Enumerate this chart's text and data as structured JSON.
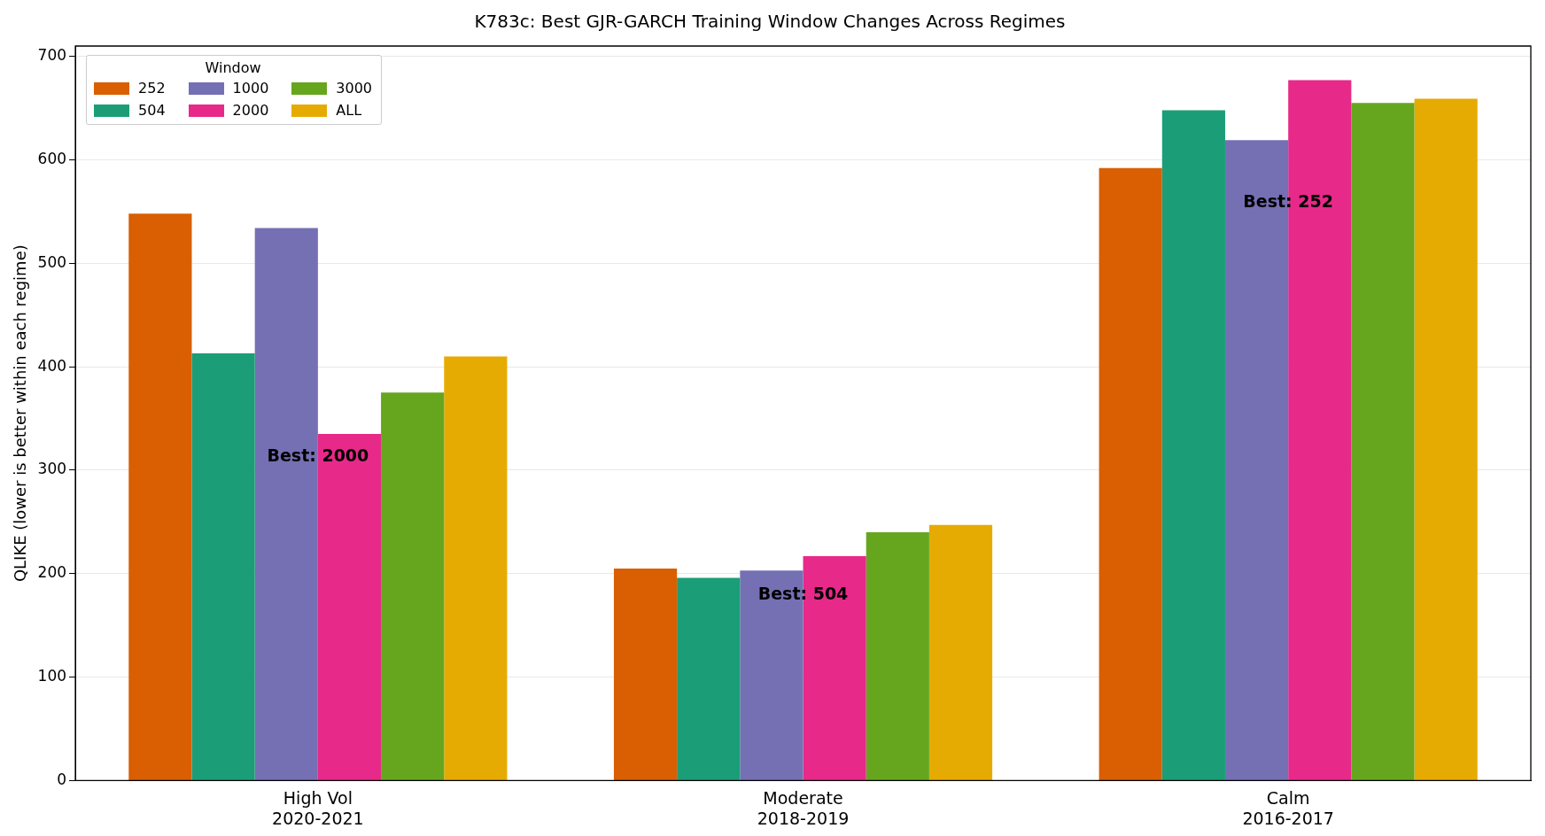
{
  "chart_data": {
    "type": "bar",
    "title": "K783c: Best GJR-GARCH Training Window Changes Across Regimes",
    "ylabel": "QLIKE (lower is better within each regime)",
    "legend_title": "Window",
    "categories": [
      "High Vol\n2020-2021",
      "Moderate\n2018-2019",
      "Calm\n2016-2017"
    ],
    "series": [
      {
        "name": "252",
        "color": "#d95f02",
        "values": [
          548,
          205,
          592
        ]
      },
      {
        "name": "504",
        "color": "#1b9e77",
        "values": [
          413,
          196,
          648
        ]
      },
      {
        "name": "1000",
        "color": "#7570b3",
        "values": [
          534,
          203,
          619
        ]
      },
      {
        "name": "2000",
        "color": "#e7298a",
        "values": [
          335,
          217,
          677
        ]
      },
      {
        "name": "3000",
        "color": "#66a61e",
        "values": [
          375,
          240,
          655
        ]
      },
      {
        "name": "ALL",
        "color": "#e6ab02",
        "values": [
          410,
          247,
          659
        ]
      }
    ],
    "annotations": [
      {
        "text": "Best: 2000",
        "x": "High Vol\n2020-2021",
        "y": 313
      },
      {
        "text": "Best: 504",
        "x": "Moderate\n2018-2019",
        "y": 179
      },
      {
        "text": "Best: 252",
        "x": "Calm\n2016-2017",
        "y": 558
      }
    ],
    "ylim": [
      0,
      710
    ],
    "yticks": [
      0,
      100,
      200,
      300,
      400,
      500,
      600,
      700
    ],
    "grid": "y",
    "legend": "top left"
  }
}
